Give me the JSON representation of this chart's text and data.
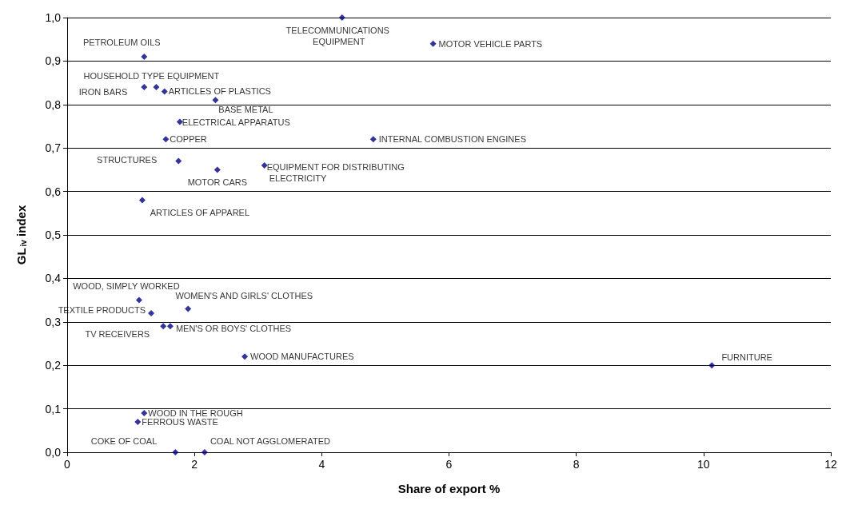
{
  "chart_data": {
    "type": "scatter",
    "xlabel": "Share of export %",
    "ylabel": "GL$_{iv}$ index",
    "xlim": [
      0,
      12
    ],
    "xticks": [
      0,
      2,
      4,
      6,
      8,
      10,
      12
    ],
    "ylim": [
      0,
      1
    ],
    "yticks": [
      {
        "value": 0,
        "label": "0,0"
      },
      {
        "value": 0.1,
        "label": "0,1"
      },
      {
        "value": 0.2,
        "label": "0,2"
      },
      {
        "value": 0.3,
        "label": "0,3"
      },
      {
        "value": 0.4,
        "label": "0,4"
      },
      {
        "value": 0.5,
        "label": "0,5"
      },
      {
        "value": 0.6,
        "label": "0,6"
      },
      {
        "value": 0.7,
        "label": "0,7"
      },
      {
        "value": 0.8,
        "label": "0,8"
      },
      {
        "value": 0.9,
        "label": "0,9"
      },
      {
        "value": 1,
        "label": "1,0"
      }
    ],
    "grid": "y",
    "marker": "diamond",
    "series": [
      {
        "color": "#000080",
        "x": [
          4.32,
          5.75,
          1.21,
          1.21,
          1.4,
          1.53,
          2.33,
          1.77,
          1.55,
          1.75,
          2.36,
          3.1,
          1.18,
          4.81,
          1.13,
          1.9,
          1.32,
          1.51,
          1.62,
          2.79,
          1.21,
          1.11,
          1.7,
          2.16,
          10.13
        ],
        "values": [
          1.0,
          0.94,
          0.91,
          0.84,
          0.84,
          0.83,
          0.81,
          0.76,
          0.72,
          0.67,
          0.65,
          0.66,
          0.58,
          0.72,
          0.35,
          0.33,
          0.32,
          0.29,
          0.29,
          0.22,
          0.09,
          0.07,
          0,
          0,
          0.2
        ]
      }
    ],
    "annotations": [
      {
        "text": "TELECOMMUNICATIONS EQUIPMENT",
        "x": 4.32,
        "y": 1.0
      },
      {
        "text": "MOTOR VEHICLE PARTS",
        "x": 5.75,
        "y": 0.94
      },
      {
        "text": "PETROLEUM OILS",
        "x": 1.21,
        "y": 0.91
      },
      {
        "text": "IRON BARS",
        "x": 1.21,
        "y": 0.84
      },
      {
        "text": "HOUSEHOLD TYPE EQUIPMENT",
        "x": 1.4,
        "y": 0.84
      },
      {
        "text": "ARTICLES OF PLASTICS",
        "x": 1.53,
        "y": 0.83
      },
      {
        "text": "BASE METAL",
        "x": 2.33,
        "y": 0.81
      },
      {
        "text": "ELECTRICAL APPARATUS",
        "x": 1.77,
        "y": 0.76
      },
      {
        "text": "COPPER",
        "x": 1.55,
        "y": 0.72
      },
      {
        "text": "STRUCTURES",
        "x": 1.75,
        "y": 0.67
      },
      {
        "text": "MOTOR CARS",
        "x": 2.36,
        "y": 0.65
      },
      {
        "text": "EQUIPMENT FOR DISTRIBUTING ELECTRICITY",
        "x": 3.1,
        "y": 0.66
      },
      {
        "text": "ARTICLES OF APPAREL",
        "x": 1.18,
        "y": 0.58
      },
      {
        "text": "INTERNAL COMBUSTION ENGINES",
        "x": 4.81,
        "y": 0.72
      },
      {
        "text": "WOOD, SIMPLY WORKED",
        "x": 1.13,
        "y": 0.35
      },
      {
        "text": "WOMEN'S AND GIRLS' CLOTHES",
        "x": 1.9,
        "y": 0.33
      },
      {
        "text": "TEXTILE PRODUCTS",
        "x": 1.32,
        "y": 0.32
      },
      {
        "text": "TV RECEIVERS",
        "x": 1.51,
        "y": 0.29
      },
      {
        "text": "MEN'S OR BOYS' CLOTHES",
        "x": 1.62,
        "y": 0.29
      },
      {
        "text": "WOOD MANUFACTURES",
        "x": 2.79,
        "y": 0.22
      },
      {
        "text": "WOOD IN THE ROUGH",
        "x": 1.21,
        "y": 0.09
      },
      {
        "text": "FERROUS WASTE",
        "x": 1.11,
        "y": 0.07
      },
      {
        "text": "COKE OF COAL",
        "x": 1.7,
        "y": 0
      },
      {
        "text": "COAL NOT AGGLOMERATED",
        "x": 2.16,
        "y": 0
      },
      {
        "text": "FURNITURE",
        "x": 10.13,
        "y": 0.2
      }
    ]
  }
}
